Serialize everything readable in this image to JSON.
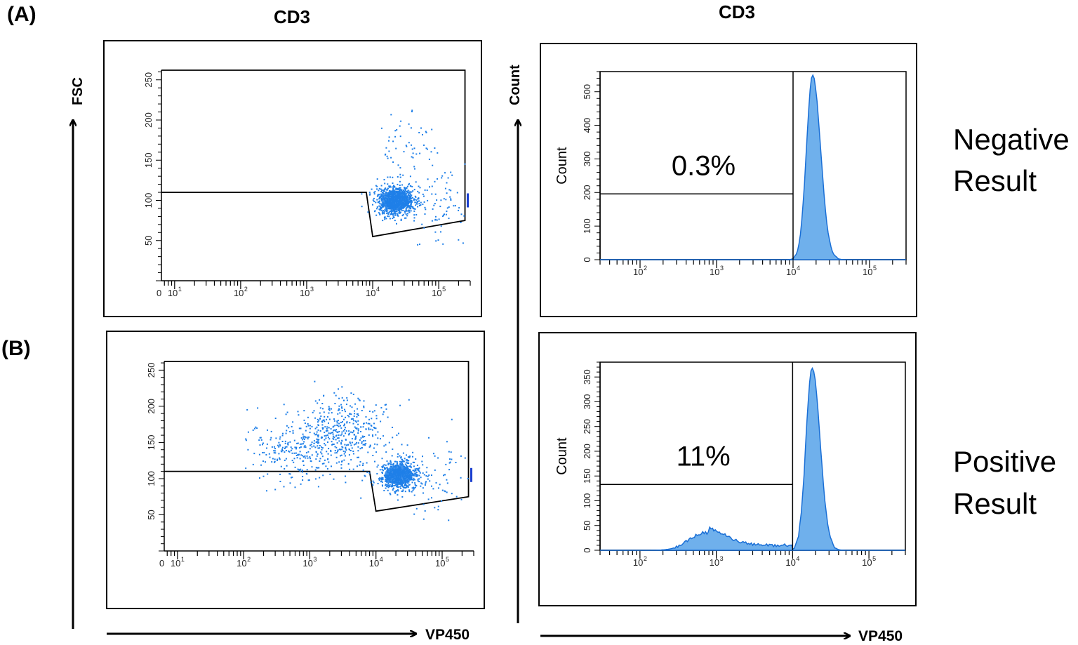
{
  "figure": {
    "panel_a_label": "(A)",
    "panel_b_label": "(B)",
    "col_title_left": "CD3",
    "col_title_right": "CD3",
    "left_y_axis": "FSC",
    "right_y_axis": "Count",
    "x_axis_left": "VP450",
    "x_axis_right": "VP450",
    "result_negative_line1": "Negative",
    "result_negative_line2": "Result",
    "result_positive_line1": "Positive",
    "result_positive_line2": "Result",
    "colors": {
      "dots": "#1e7fe8",
      "fill": "#6fb0ec",
      "line": "#1a6fd6"
    }
  },
  "chart_data": [
    {
      "type": "scatter",
      "id": "A-dot",
      "title": "",
      "xlabel": "VP450 (log)",
      "ylabel": "FSC",
      "xscale": "log",
      "xlim": [
        0,
        300000
      ],
      "ylim": [
        0,
        262
      ],
      "x_ticks": [
        "0",
        "10",
        "10",
        "10",
        "10",
        "10"
      ],
      "x_tick_exp": [
        "",
        "1",
        "2",
        "3",
        "4",
        "5"
      ],
      "y_ticks": [
        "50",
        "100",
        "150",
        "200",
        "250"
      ],
      "gate": "polygon (0,110) (8000,110) (10000,55) (250000,75) (250000,262)",
      "clusters": [
        {
          "x": 22000,
          "y": 100,
          "n": 900
        },
        {
          "x": 30000,
          "y": 165,
          "n": 60
        },
        {
          "x": 120000,
          "y": 95,
          "n": 80
        }
      ]
    },
    {
      "type": "area",
      "id": "A-hist",
      "title": "",
      "xlabel": "VP450 (log)",
      "ylabel": "Count",
      "xscale": "log",
      "xlim": [
        30,
        300000
      ],
      "ylim": [
        0,
        560
      ],
      "x_ticks": [
        "10",
        "10",
        "10",
        "10"
      ],
      "x_tick_exp": [
        "2",
        "3",
        "4",
        "5"
      ],
      "y_ticks": [
        "0",
        "100",
        "200",
        "300",
        "400",
        "500"
      ],
      "gate_marker": 10000,
      "gate_percent": "0.3%",
      "peaks": [
        {
          "x": 18000,
          "height": 550,
          "width": 0.08
        }
      ]
    },
    {
      "type": "scatter",
      "id": "B-dot",
      "title": "",
      "xlabel": "VP450 (log)",
      "ylabel": "FSC",
      "xscale": "log",
      "xlim": [
        0,
        300000
      ],
      "ylim": [
        0,
        262
      ],
      "x_ticks": [
        "0",
        "10",
        "10",
        "10",
        "10",
        "10"
      ],
      "x_tick_exp": [
        "",
        "1",
        "2",
        "3",
        "4",
        "5"
      ],
      "y_ticks": [
        "50",
        "100",
        "150",
        "200",
        "250"
      ],
      "gate": "polygon (0,110) (8000,110) (10000,55) (250000,75) (250000,262)",
      "clusters": [
        {
          "x": 22000,
          "y": 105,
          "n": 650
        },
        {
          "x": 500,
          "y": 140,
          "n": 230
        },
        {
          "x": 3000,
          "y": 165,
          "n": 420
        },
        {
          "x": 80000,
          "y": 100,
          "n": 70
        }
      ]
    },
    {
      "type": "area",
      "id": "B-hist",
      "title": "",
      "xlabel": "VP450 (log)",
      "ylabel": "Count",
      "xscale": "log",
      "xlim": [
        30,
        300000
      ],
      "ylim": [
        0,
        380
      ],
      "x_ticks": [
        "10",
        "10",
        "10",
        "10"
      ],
      "x_tick_exp": [
        "2",
        "3",
        "4",
        "5"
      ],
      "y_ticks": [
        "0",
        "50",
        "100",
        "150",
        "200",
        "250",
        "300",
        "350"
      ],
      "gate_marker": 10000,
      "gate_percent": "11%",
      "peaks": [
        {
          "x": 18000,
          "height": 370,
          "width": 0.08
        },
        {
          "x": 700,
          "height": 35,
          "width": 0.2
        }
      ]
    }
  ]
}
